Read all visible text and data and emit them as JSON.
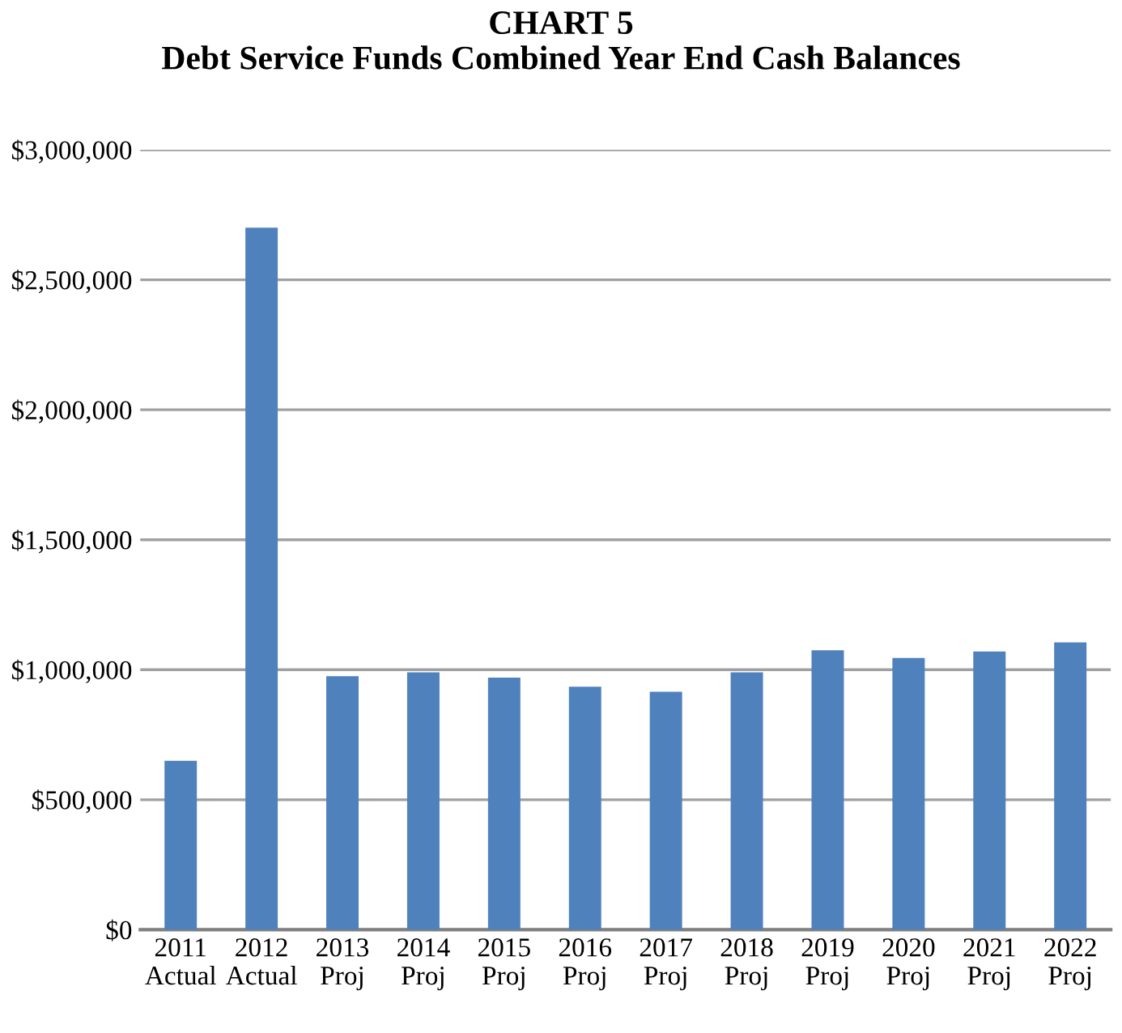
{
  "chart_data": {
    "type": "bar",
    "title": "CHART 5\nDebt Service Funds Combined Year End Cash Balances",
    "categories": [
      "2011\nActual",
      "2012\nActual",
      "2013\nProj",
      "2014\nProj",
      "2015\nProj",
      "2016\nProj",
      "2017\nProj",
      "2018\nProj",
      "2019\nProj",
      "2020\nProj",
      "2021\nProj",
      "2022\nProj"
    ],
    "values": [
      650000,
      2700000,
      975000,
      990000,
      970000,
      935000,
      915000,
      990000,
      1075000,
      1045000,
      1070000,
      1105000
    ],
    "color": "#4f81bd",
    "ylim": [
      0,
      3000000
    ],
    "yticks": [
      {
        "value": 0,
        "label": "$0"
      },
      {
        "value": 500000,
        "label": "$500,000"
      },
      {
        "value": 1000000,
        "label": "$1,000,000"
      },
      {
        "value": 1500000,
        "label": "$1,500,000"
      },
      {
        "value": 2000000,
        "label": "$2,000,000"
      },
      {
        "value": 2500000,
        "label": "$2,500,000"
      },
      {
        "value": 3000000,
        "label": "$3,000,000"
      }
    ],
    "grid": "y",
    "legend": false
  }
}
